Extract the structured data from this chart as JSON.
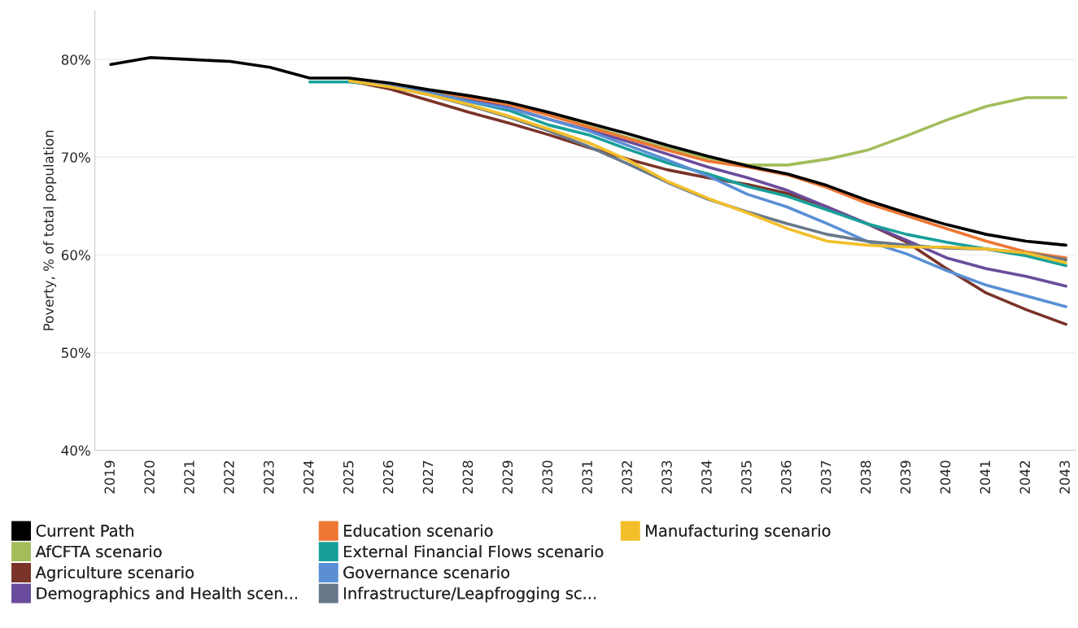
{
  "chart_data": {
    "type": "line",
    "ylabel": "Poverty, % of total population",
    "categories": [
      "2019",
      "2020",
      "2021",
      "2022",
      "2023",
      "2024",
      "2025",
      "2026",
      "2027",
      "2028",
      "2029",
      "2030",
      "2031",
      "2032",
      "2033",
      "2034",
      "2035",
      "2036",
      "2037",
      "2038",
      "2039",
      "2040",
      "2041",
      "2042",
      "2043"
    ],
    "ylim": [
      40,
      85
    ],
    "yticks": [
      {
        "value": 40,
        "label": "40%"
      },
      {
        "value": 50,
        "label": "50%"
      },
      {
        "value": 60,
        "label": "60%"
      },
      {
        "value": 70,
        "label": "70%"
      },
      {
        "value": 80,
        "label": "80%"
      }
    ],
    "grid": "y",
    "legend": "bottom left",
    "series": [
      {
        "name": "Current Path",
        "color": "#000000",
        "values": [
          79.5,
          80.2,
          80.0,
          79.8,
          79.2,
          78.1,
          78.1,
          77.6,
          76.9,
          76.3,
          75.6,
          74.6,
          73.5,
          72.4,
          71.2,
          70.1,
          69.1,
          68.3,
          67.1,
          65.6,
          64.3,
          63.1,
          62.1,
          61.4,
          61.0
        ]
      },
      {
        "name": "AfCFTA scenario",
        "color": "#a3bd5b",
        "values": [
          null,
          null,
          null,
          null,
          null,
          null,
          77.8,
          77.5,
          76.8,
          76.1,
          75.5,
          74.4,
          73.2,
          72.0,
          70.9,
          69.9,
          69.2,
          69.2,
          69.8,
          70.7,
          72.2,
          73.8,
          75.2,
          76.1,
          76.1
        ]
      },
      {
        "name": "Agriculture scenario",
        "color": "#7a3328",
        "values": [
          null,
          null,
          null,
          null,
          null,
          null,
          77.8,
          77.0,
          75.8,
          74.6,
          73.5,
          72.3,
          71.0,
          69.8,
          68.7,
          67.9,
          67.2,
          66.3,
          64.9,
          63.2,
          61.3,
          58.6,
          56.1,
          54.4,
          52.9
        ]
      },
      {
        "name": "Demographics and Health scen...",
        "color": "#6a4c9c",
        "values": [
          null,
          null,
          null,
          null,
          null,
          null,
          77.8,
          77.4,
          76.7,
          75.9,
          75.1,
          73.9,
          72.8,
          71.6,
          70.3,
          69.0,
          67.9,
          66.6,
          64.9,
          63.2,
          61.5,
          59.7,
          58.6,
          57.8,
          56.8
        ]
      },
      {
        "name": "Education scenario",
        "color": "#ee7734",
        "values": [
          null,
          null,
          null,
          null,
          null,
          null,
          77.8,
          77.4,
          76.8,
          76.1,
          75.4,
          74.3,
          73.1,
          71.9,
          70.7,
          69.6,
          69.0,
          68.2,
          66.9,
          65.3,
          64.0,
          62.7,
          61.4,
          60.3,
          59.7
        ]
      },
      {
        "name": "External Financial Flows scenario",
        "color": "#17a09a",
        "values": [
          null,
          null,
          null,
          null,
          null,
          77.7,
          77.7,
          77.3,
          76.6,
          75.7,
          74.8,
          73.3,
          72.3,
          70.8,
          69.4,
          68.3,
          67.0,
          66.0,
          64.6,
          63.2,
          62.1,
          61.3,
          60.6,
          59.9,
          58.9
        ]
      },
      {
        "name": "Governance scenario",
        "color": "#5a8fd4",
        "values": [
          null,
          null,
          null,
          null,
          null,
          null,
          77.8,
          77.3,
          76.6,
          75.7,
          75.0,
          73.9,
          72.7,
          71.2,
          69.7,
          68.1,
          66.2,
          64.9,
          63.2,
          61.4,
          60.1,
          58.4,
          56.9,
          55.8,
          54.7
        ]
      },
      {
        "name": "Infrastructure/Leapfrogging sc...",
        "color": "#67788a",
        "values": [
          null,
          null,
          null,
          null,
          null,
          null,
          77.8,
          77.2,
          76.4,
          75.3,
          74.1,
          72.7,
          71.1,
          69.3,
          67.4,
          65.7,
          64.4,
          63.2,
          62.1,
          61.4,
          61.0,
          60.7,
          60.6,
          60.2,
          59.5
        ]
      },
      {
        "name": "Manufacturing scenario",
        "color": "#f2bf2b",
        "values": [
          null,
          null,
          null,
          null,
          null,
          null,
          77.8,
          77.2,
          76.4,
          75.4,
          74.2,
          72.9,
          71.5,
          69.7,
          67.5,
          65.8,
          64.3,
          62.7,
          61.4,
          61.0,
          60.8,
          60.8,
          60.6,
          60.2,
          59.2
        ]
      }
    ]
  }
}
